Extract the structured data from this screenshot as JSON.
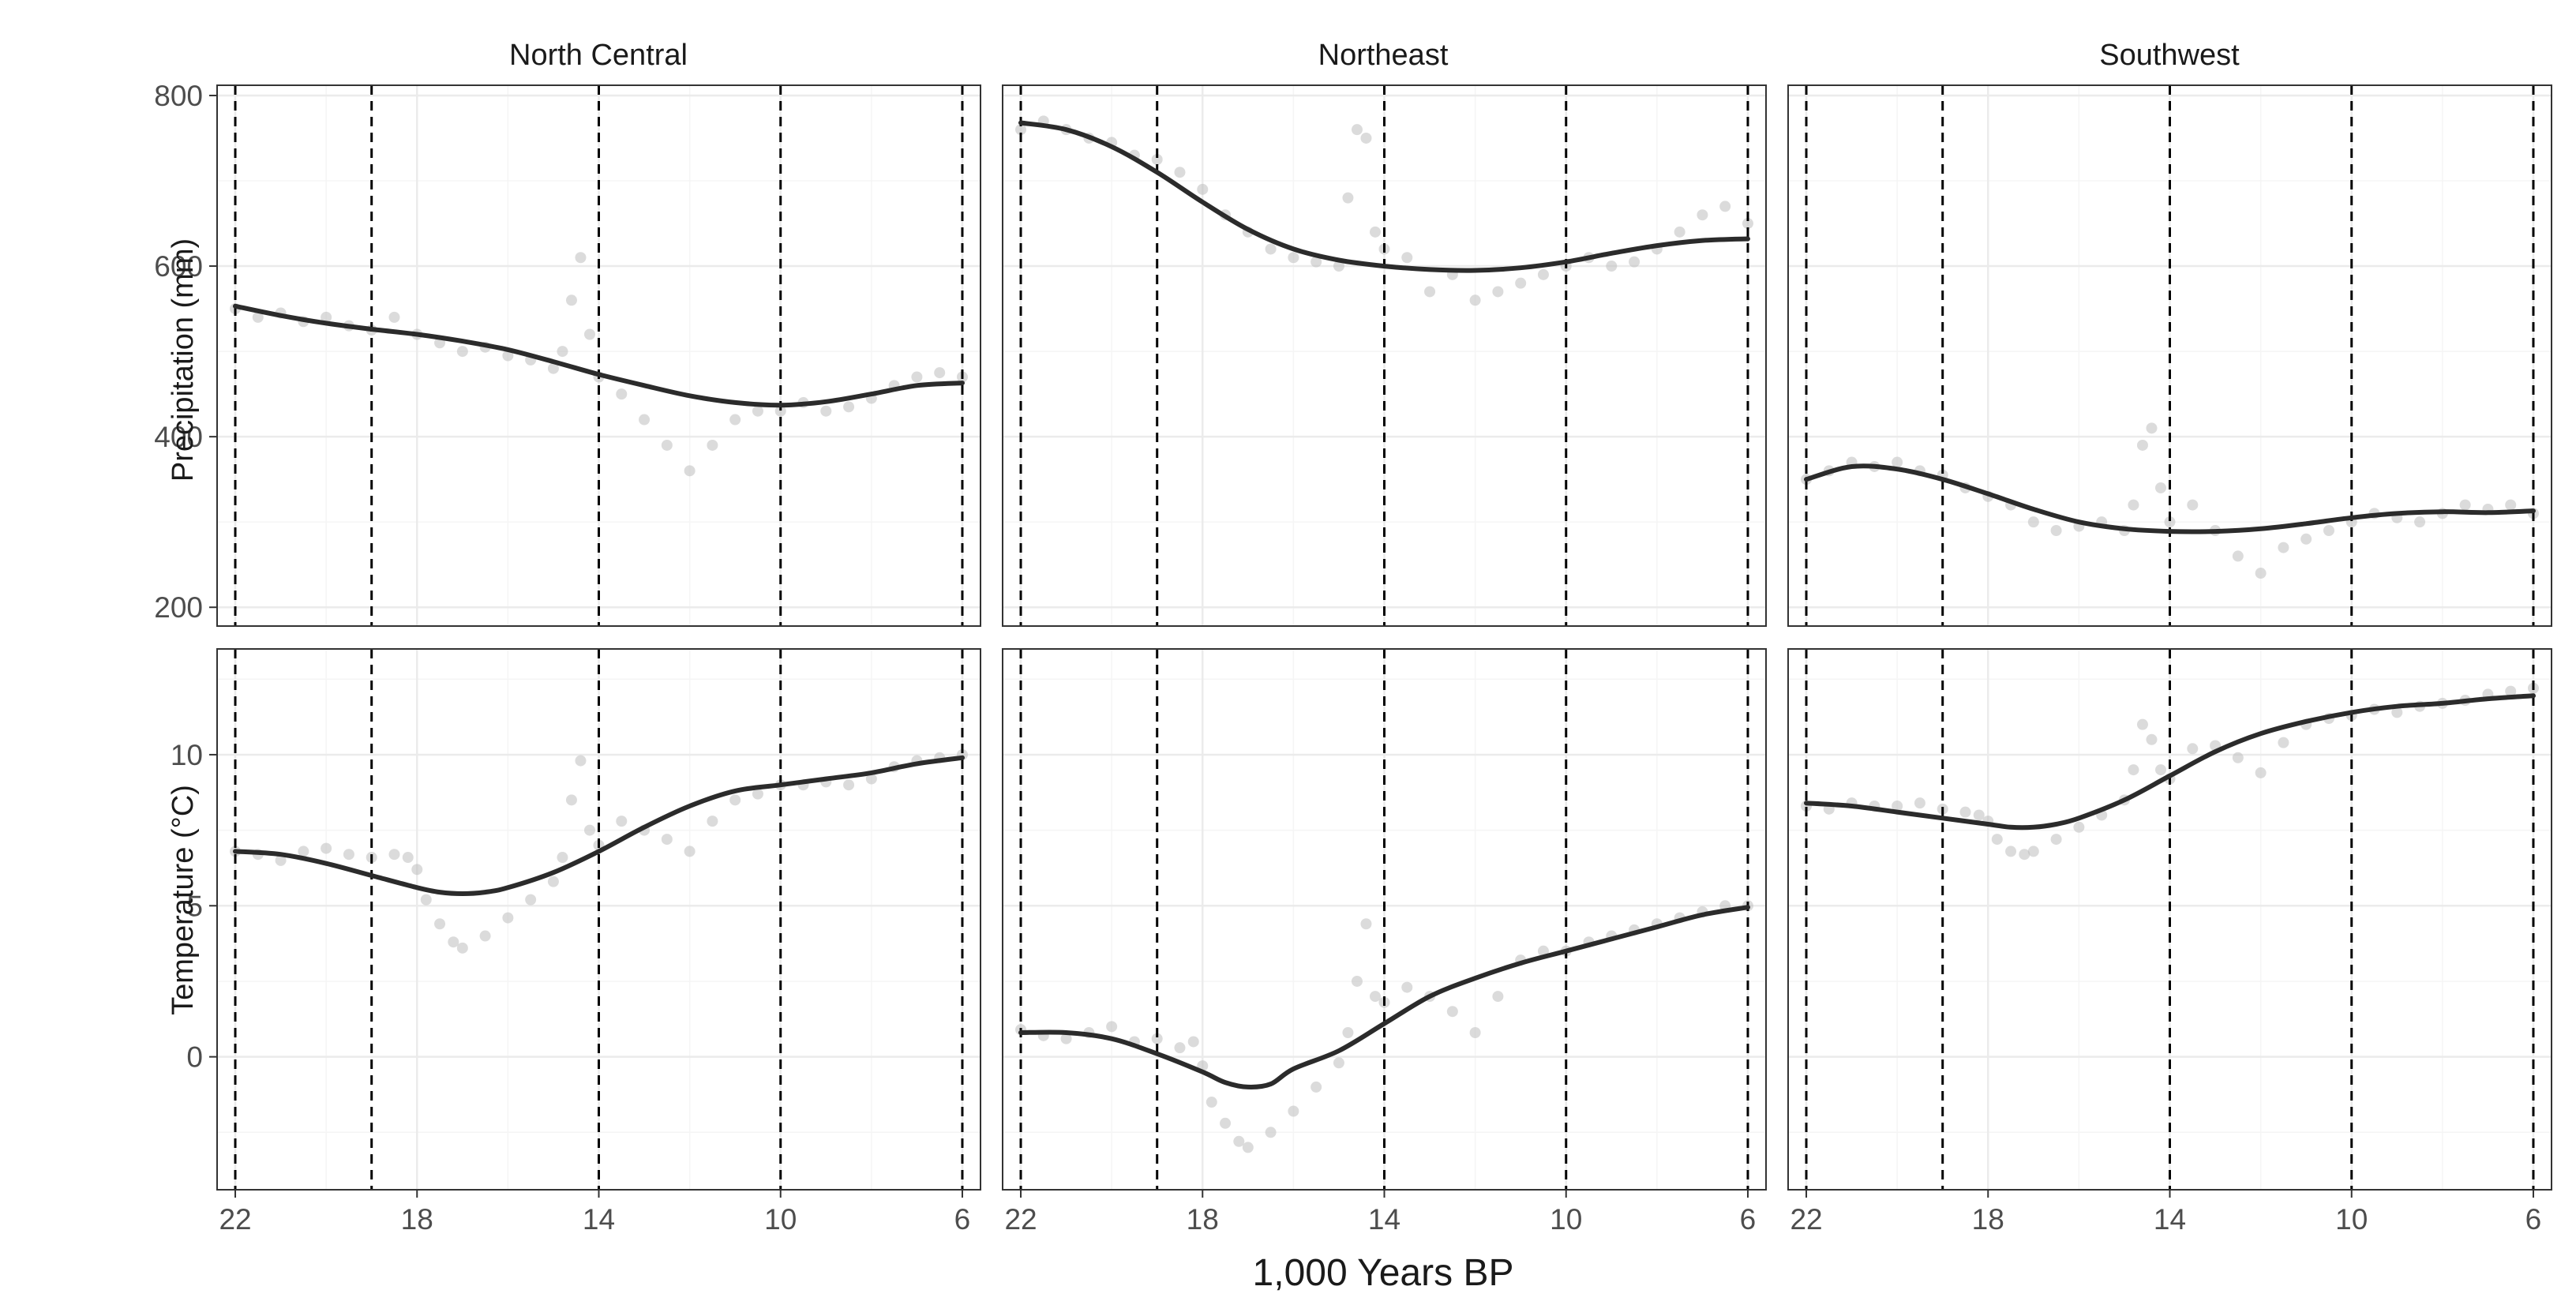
{
  "figure": {
    "xlabel": "1,000 Years BP",
    "columns": [
      "North Central",
      "Northeast",
      "Southwest"
    ]
  },
  "colors": {
    "points": "#bdbdbd",
    "smooth": "#2b2b2b",
    "vline": "#000000",
    "grid_major": "#ebebeb",
    "grid_minor": "#f5f5f5",
    "panel_border": "#333333",
    "tick_text": "#4d4d4d"
  },
  "chart_data": [
    {
      "type": "scatter",
      "variable": "precipitation",
      "ylabel": "Precipitation (mm)",
      "xlim": [
        22.4,
        5.6
      ],
      "ylim": [
        178,
        812
      ],
      "xticks": [
        22,
        18,
        14,
        10,
        6
      ],
      "yticks": [
        200,
        400,
        600,
        800
      ],
      "vlines": [
        22,
        19,
        14,
        10,
        6
      ],
      "panels": [
        {
          "region": "North Central",
          "smooth": {
            "x": [
              22,
              21,
              20,
              19,
              18,
              17,
              16,
              15,
              14,
              13,
              12,
              11,
              10,
              9,
              8,
              7,
              6
            ],
            "y": [
              553,
              542,
              533,
              526,
              520,
              512,
              502,
              488,
              473,
              460,
              448,
              440,
              437,
              441,
              450,
              460,
              463
            ]
          },
          "scatter": {
            "x": [
              22,
              21.5,
              21,
              20.5,
              20,
              19.5,
              19,
              18.5,
              18,
              17.5,
              17,
              16.5,
              16,
              15.5,
              15,
              14.8,
              14.6,
              14.4,
              14.2,
              14,
              13.5,
              13,
              12.5,
              12,
              11.5,
              11,
              10.5,
              10,
              9.5,
              9,
              8.5,
              8,
              7.5,
              7,
              6.5,
              6
            ],
            "y": [
              550,
              540,
              545,
              535,
              540,
              530,
              525,
              540,
              520,
              510,
              500,
              505,
              495,
              490,
              480,
              500,
              560,
              610,
              520,
              470,
              450,
              420,
              390,
              360,
              390,
              420,
              430,
              430,
              440,
              430,
              435,
              445,
              460,
              470,
              475,
              470
            ]
          }
        },
        {
          "region": "Northeast",
          "smooth": {
            "x": [
              22,
              21,
              20,
              19,
              18,
              17,
              16,
              15,
              14,
              13,
              12,
              11,
              10,
              9,
              8,
              7,
              6
            ],
            "y": [
              768,
              760,
              740,
              710,
              675,
              643,
              620,
              607,
              600,
              596,
              595,
              598,
              605,
              615,
              624,
              630,
              632
            ]
          },
          "scatter": {
            "x": [
              22,
              21.5,
              21,
              20.5,
              20,
              19.5,
              19,
              18.5,
              18,
              17.5,
              17,
              16.5,
              16,
              15.5,
              15,
              14.8,
              14.6,
              14.4,
              14.2,
              14,
              13.5,
              13,
              12.5,
              12,
              11.5,
              11,
              10.5,
              10,
              9.5,
              9,
              8.5,
              8,
              7.5,
              7,
              6.5,
              6
            ],
            "y": [
              760,
              770,
              760,
              750,
              745,
              730,
              725,
              710,
              690,
              660,
              640,
              620,
              610,
              605,
              600,
              680,
              760,
              750,
              640,
              620,
              610,
              570,
              590,
              560,
              570,
              580,
              590,
              600,
              610,
              600,
              605,
              620,
              640,
              660,
              670,
              650
            ]
          }
        },
        {
          "region": "Southwest",
          "smooth": {
            "x": [
              22,
              21,
              20,
              19,
              18,
              17,
              16,
              15,
              14,
              13,
              12,
              11,
              10,
              9,
              8,
              7,
              6
            ],
            "y": [
              350,
              365,
              362,
              350,
              333,
              315,
              300,
              292,
              289,
              289,
              292,
              298,
              305,
              310,
              312,
              311,
              313
            ]
          },
          "scatter": {
            "x": [
              22,
              21.5,
              21,
              20.5,
              20,
              19.5,
              19,
              18.5,
              18,
              17.5,
              17,
              16.5,
              16,
              15.5,
              15,
              14.8,
              14.6,
              14.4,
              14.2,
              14,
              13.5,
              13,
              12.5,
              12,
              11.5,
              11,
              10.5,
              10,
              9.5,
              9,
              8.5,
              8,
              7.5,
              7,
              6.5,
              6
            ],
            "y": [
              350,
              360,
              370,
              365,
              370,
              360,
              355,
              340,
              330,
              320,
              300,
              290,
              295,
              300,
              290,
              320,
              390,
              410,
              340,
              300,
              320,
              290,
              260,
              240,
              270,
              280,
              290,
              300,
              310,
              305,
              300,
              310,
              320,
              315,
              320,
              310
            ]
          }
        }
      ]
    },
    {
      "type": "scatter",
      "variable": "temperature",
      "ylabel": "Temperature (°C)",
      "xlim": [
        22.4,
        5.6
      ],
      "ylim": [
        -4.4,
        13.5
      ],
      "xticks": [
        22,
        18,
        14,
        10,
        6
      ],
      "yticks": [
        0,
        5,
        10
      ],
      "vlines": [
        22,
        19,
        14,
        10,
        6
      ],
      "panels": [
        {
          "region": "North Central",
          "smooth": {
            "x": [
              22,
              21,
              20,
              19,
              18,
              17.5,
              17,
              16.5,
              16,
              15,
              14,
              13,
              12,
              11,
              10,
              9,
              8,
              7,
              6
            ],
            "y": [
              6.8,
              6.7,
              6.4,
              6.0,
              5.6,
              5.45,
              5.4,
              5.45,
              5.6,
              6.1,
              6.8,
              7.6,
              8.3,
              8.8,
              9.0,
              9.2,
              9.4,
              9.7,
              9.9
            ]
          },
          "scatter": {
            "x": [
              22,
              21.5,
              21,
              20.5,
              20,
              19.5,
              19,
              18.5,
              18.2,
              18,
              17.8,
              17.5,
              17.2,
              17,
              16.5,
              16,
              15.5,
              15,
              14.8,
              14.6,
              14.4,
              14.2,
              14,
              13.5,
              13,
              12.5,
              12,
              11.5,
              11,
              10.5,
              10,
              9.5,
              9,
              8.5,
              8,
              7.5,
              7,
              6.5,
              6
            ],
            "y": [
              6.8,
              6.7,
              6.5,
              6.8,
              6.9,
              6.7,
              6.6,
              6.7,
              6.6,
              6.2,
              5.2,
              4.4,
              3.8,
              3.6,
              4.0,
              4.6,
              5.2,
              5.8,
              6.6,
              8.5,
              9.8,
              7.5,
              7.0,
              7.8,
              7.5,
              7.2,
              6.8,
              7.8,
              8.5,
              8.7,
              9.0,
              9.0,
              9.1,
              9.0,
              9.2,
              9.6,
              9.8,
              9.9,
              10.0
            ]
          }
        },
        {
          "region": "Northeast",
          "smooth": {
            "x": [
              22,
              21,
              20,
              19,
              18,
              17.5,
              17,
              16.5,
              16,
              15,
              14,
              13,
              12,
              11,
              10,
              9,
              8,
              7,
              6
            ],
            "y": [
              0.8,
              0.8,
              0.6,
              0.1,
              -0.5,
              -0.85,
              -1.0,
              -0.9,
              -0.4,
              0.2,
              1.1,
              2.0,
              2.6,
              3.1,
              3.5,
              3.9,
              4.3,
              4.7,
              4.95
            ]
          },
          "scatter": {
            "x": [
              22,
              21.5,
              21,
              20.5,
              20,
              19.5,
              19,
              18.5,
              18.2,
              18,
              17.8,
              17.5,
              17.2,
              17,
              16.5,
              16,
              15.5,
              15,
              14.8,
              14.6,
              14.4,
              14.2,
              14,
              13.5,
              13,
              12.5,
              12,
              11.5,
              11,
              10.5,
              10,
              9.5,
              9,
              8.5,
              8,
              7.5,
              7,
              6.5,
              6
            ],
            "y": [
              0.9,
              0.7,
              0.6,
              0.8,
              1.0,
              0.5,
              0.6,
              0.3,
              0.5,
              -0.3,
              -1.5,
              -2.2,
              -2.8,
              -3.0,
              -2.5,
              -1.8,
              -1.0,
              -0.2,
              0.8,
              2.5,
              4.4,
              2.0,
              1.8,
              2.3,
              2.0,
              1.5,
              0.8,
              2.0,
              3.2,
              3.5,
              3.5,
              3.8,
              4.0,
              4.2,
              4.4,
              4.6,
              4.8,
              5.0,
              5.0
            ]
          }
        },
        {
          "region": "Southwest",
          "smooth": {
            "x": [
              22,
              21,
              20,
              19,
              18,
              17.5,
              17,
              16.5,
              16,
              15,
              14,
              13,
              12,
              11,
              10,
              9,
              8,
              7,
              6
            ],
            "y": [
              8.4,
              8.3,
              8.1,
              7.9,
              7.7,
              7.6,
              7.6,
              7.7,
              7.9,
              8.5,
              9.3,
              10.1,
              10.7,
              11.1,
              11.4,
              11.6,
              11.7,
              11.85,
              11.95
            ]
          },
          "scatter": {
            "x": [
              22,
              21.5,
              21,
              20.5,
              20,
              19.5,
              19,
              18.5,
              18.2,
              18,
              17.8,
              17.5,
              17.2,
              17,
              16.5,
              16,
              15.5,
              15,
              14.8,
              14.6,
              14.4,
              14.2,
              14,
              13.5,
              13,
              12.5,
              12,
              11.5,
              11,
              10.5,
              10,
              9.5,
              9,
              8.5,
              8,
              7.5,
              7,
              6.5,
              6
            ],
            "y": [
              8.3,
              8.2,
              8.4,
              8.3,
              8.3,
              8.4,
              8.2,
              8.1,
              8.0,
              7.8,
              7.2,
              6.8,
              6.7,
              6.8,
              7.2,
              7.6,
              8.0,
              8.5,
              9.5,
              11.0,
              10.5,
              9.5,
              9.2,
              10.2,
              10.3,
              9.9,
              9.4,
              10.4,
              11.0,
              11.2,
              11.3,
              11.5,
              11.4,
              11.6,
              11.7,
              11.8,
              12.0,
              12.1,
              12.2
            ]
          }
        }
      ]
    }
  ]
}
